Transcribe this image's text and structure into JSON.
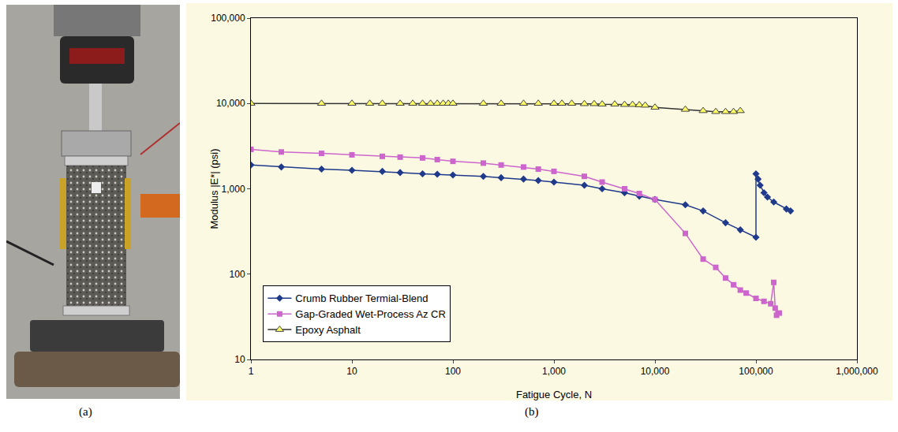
{
  "figure": {
    "captions": [
      "(a)",
      "(b)"
    ]
  },
  "chart_data": {
    "type": "line",
    "x_label": "Fatigue Cycle, N",
    "y_label": "Modulus |E*| (psi)",
    "log": true,
    "grid": false,
    "legend": "lower left",
    "xlim": [
      1,
      1000000
    ],
    "xticks": [
      1,
      10,
      100,
      {
        "value": 1000,
        "label": "1,000"
      },
      {
        "value": 10000,
        "label": "10,000"
      },
      {
        "value": 100000,
        "label": "100,000"
      },
      {
        "value": 1000000,
        "label": "1,000,000"
      }
    ],
    "ylim": [
      10,
      100000
    ],
    "yticks": [
      10,
      100,
      {
        "value": 1000,
        "label": "1,000"
      },
      {
        "value": 10000,
        "label": "10,000"
      },
      {
        "value": 100000,
        "label": "100,000"
      }
    ],
    "series": [
      {
        "name": "Crumb Rubber Termial-Blend",
        "color": "#1f3a8a",
        "marker": "diamond",
        "line_style": "solid",
        "x": [
          1,
          2,
          5,
          10,
          20,
          30,
          50,
          70,
          100,
          200,
          300,
          500,
          700,
          1000,
          2000,
          3000,
          5000,
          7000,
          10000,
          20000,
          30000,
          50000,
          70000,
          100000,
          100000,
          105000,
          110000,
          120000,
          130000,
          150000,
          200000,
          220000
        ],
        "values": [
          1900,
          1800,
          1700,
          1650,
          1600,
          1550,
          1500,
          1480,
          1450,
          1400,
          1350,
          1300,
          1250,
          1200,
          1100,
          1000,
          900,
          820,
          750,
          650,
          550,
          400,
          330,
          270,
          1500,
          1300,
          1100,
          900,
          800,
          700,
          580,
          550
        ]
      },
      {
        "name": "Gap-Graded Wet-Process Az CR",
        "color": "#cc66cc",
        "marker": "square",
        "line_style": "solid",
        "x": [
          1,
          2,
          5,
          10,
          20,
          30,
          50,
          70,
          100,
          200,
          300,
          500,
          700,
          1000,
          2000,
          3000,
          5000,
          7000,
          10000,
          20000,
          30000,
          40000,
          50000,
          60000,
          70000,
          80000,
          100000,
          120000,
          140000,
          150000,
          155000,
          160000,
          170000
        ],
        "values": [
          2900,
          2700,
          2600,
          2500,
          2400,
          2350,
          2300,
          2200,
          2100,
          2000,
          1900,
          1800,
          1700,
          1600,
          1400,
          1200,
          1000,
          880,
          750,
          300,
          150,
          120,
          90,
          75,
          65,
          60,
          52,
          48,
          45,
          80,
          40,
          33,
          35
        ]
      },
      {
        "name": "Epoxy Asphalt",
        "color": "#ffff66",
        "marker": "triangle-up",
        "line_style": "solid",
        "x": [
          1,
          5,
          10,
          15,
          20,
          30,
          40,
          50,
          60,
          70,
          80,
          90,
          100,
          200,
          300,
          500,
          700,
          1000,
          1200,
          1500,
          2000,
          2500,
          3000,
          4000,
          5000,
          6000,
          7000,
          8000,
          10000,
          20000,
          30000,
          40000,
          50000,
          60000,
          70000
        ],
        "values": [
          10000,
          10000,
          10000,
          10000,
          10000,
          10000,
          10000,
          10000,
          10000,
          10000,
          10000,
          10000,
          10000,
          10000,
          10000,
          10000,
          10000,
          10000,
          10000,
          10000,
          9900,
          9900,
          9800,
          9800,
          9700,
          9700,
          9600,
          9500,
          9000,
          8500,
          8200,
          8000,
          8000,
          8000,
          8200
        ]
      }
    ]
  }
}
